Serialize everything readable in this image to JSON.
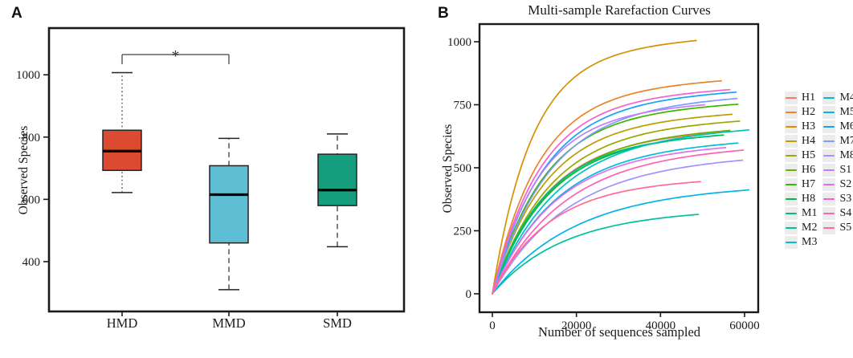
{
  "panel_labels": {
    "a": "A",
    "b": "B"
  },
  "chart_data": [
    {
      "type": "box",
      "panel": "A",
      "ylabel": "Observed Species",
      "yticks": [
        400,
        600,
        800,
        1000
      ],
      "ylim": [
        240,
        1150
      ],
      "categories": [
        "HMD",
        "MMD",
        "SMD"
      ],
      "boxes": [
        {
          "category": "HMD",
          "color": "#DC4A31",
          "whisker_style": "dotted",
          "whisker_low": 622,
          "q1": 693,
          "median": 755,
          "q3": 822,
          "whisker_high": 1007
        },
        {
          "category": "MMD",
          "color": "#5FBED4",
          "whisker_style": "dashed",
          "whisker_low": 310,
          "q1": 460,
          "median": 615,
          "q3": 708,
          "whisker_high": 796
        },
        {
          "category": "SMD",
          "color": "#159E7D",
          "whisker_style": "dashed",
          "whisker_low": 448,
          "q1": 580,
          "median": 630,
          "q3": 745,
          "whisker_high": 810
        }
      ],
      "significance": {
        "between": [
          "HMD",
          "MMD"
        ],
        "label": "*",
        "bar_y": 1065
      }
    },
    {
      "type": "line",
      "panel": "B",
      "title": "Multi-sample Rarefaction Curves",
      "xlabel": "Number of sequences sampled",
      "ylabel": "Observed Species",
      "xticks": [
        0,
        20000,
        40000,
        60000
      ],
      "yticks": [
        0,
        250,
        500,
        750,
        1000
      ],
      "xlim": [
        0,
        63200
      ],
      "ylim": [
        0,
        1070
      ],
      "curve_shape": "rarefaction",
      "series": [
        {
          "name": "H1",
          "color": "#F8766D",
          "x_end": 54000,
          "y_end": 640,
          "k": 4.2
        },
        {
          "name": "H2",
          "color": "#E9842C",
          "x_end": 54500,
          "y_end": 845,
          "k": 5.0
        },
        {
          "name": "H3",
          "color": "#D69100",
          "x_end": 48500,
          "y_end": 1005,
          "k": 5.2
        },
        {
          "name": "H4",
          "color": "#BC9D00",
          "x_end": 57000,
          "y_end": 712,
          "k": 4.6
        },
        {
          "name": "H5",
          "color": "#9CA700",
          "x_end": 58800,
          "y_end": 685,
          "k": 4.4
        },
        {
          "name": "H6",
          "color": "#72B000",
          "x_end": 56500,
          "y_end": 648,
          "k": 4.2
        },
        {
          "name": "H7",
          "color": "#39B600",
          "x_end": 58400,
          "y_end": 752,
          "k": 4.8
        },
        {
          "name": "H8",
          "color": "#00BA47",
          "x_end": 55000,
          "y_end": 630,
          "k": 4.2
        },
        {
          "name": "M1",
          "color": "#00BE77",
          "x_end": 52000,
          "y_end": 625,
          "k": 4.2
        },
        {
          "name": "M2",
          "color": "#00C19F",
          "x_end": 49000,
          "y_end": 315,
          "k": 3.0
        },
        {
          "name": "M3",
          "color": "#00C0C0",
          "x_end": 61000,
          "y_end": 650,
          "k": 4.0
        },
        {
          "name": "M4",
          "color": "#00BCDA",
          "x_end": 58400,
          "y_end": 598,
          "k": 3.9
        },
        {
          "name": "M5",
          "color": "#00B4E8",
          "x_end": 61000,
          "y_end": 412,
          "k": 3.2
        },
        {
          "name": "M6",
          "color": "#14A4F4",
          "x_end": 58000,
          "y_end": 800,
          "k": 4.8
        },
        {
          "name": "M7",
          "color": "#7F9CFF",
          "x_end": 58200,
          "y_end": 775,
          "k": 4.4
        },
        {
          "name": "M8",
          "color": "#9F92FF",
          "x_end": 59500,
          "y_end": 530,
          "k": 3.4
        },
        {
          "name": "S1",
          "color": "#C07EFA",
          "x_end": 50500,
          "y_end": 750,
          "k": 4.6
        },
        {
          "name": "S2",
          "color": "#E36EF0",
          "x_end": 55500,
          "y_end": 580,
          "k": 3.8
        },
        {
          "name": "S3",
          "color": "#F661CF",
          "x_end": 56500,
          "y_end": 810,
          "k": 5.0
        },
        {
          "name": "S4",
          "color": "#FD62B5",
          "x_end": 59700,
          "y_end": 570,
          "k": 3.6
        },
        {
          "name": "S5",
          "color": "#FF6B96",
          "x_end": 49500,
          "y_end": 445,
          "k": 3.8
        }
      ],
      "legend": {
        "columns": 2,
        "rows_per_column": 11
      }
    }
  ]
}
